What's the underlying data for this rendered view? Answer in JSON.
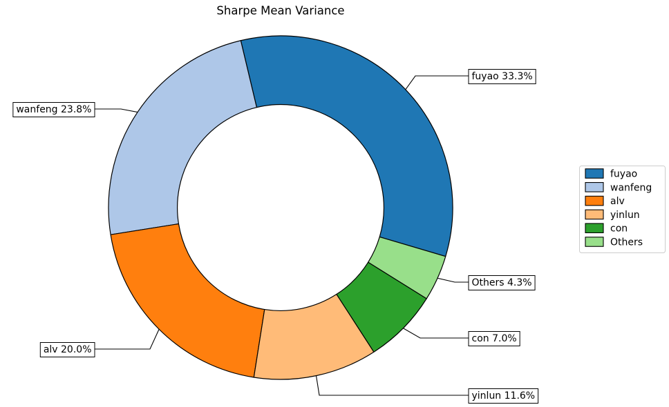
{
  "chart_data": {
    "type": "pie",
    "variant": "donut",
    "title": "Sharpe Mean Variance",
    "categories": [
      "fuyao",
      "wanfeng",
      "alv",
      "yinlun",
      "con",
      "Others"
    ],
    "values_percent": [
      33.3,
      23.8,
      20.0,
      11.6,
      7.0,
      4.3
    ],
    "slice_labels": [
      "fuyao 33.3%",
      "wanfeng 23.8%",
      "alv 20.0%",
      "yinlun 11.6%",
      "con 7.0%",
      "Others 4.3%"
    ],
    "colors": [
      "#1f77b4",
      "#aec7e8",
      "#ff7f0e",
      "#ffbb78",
      "#2ca02c",
      "#98df8a"
    ],
    "start_angle_deg": -16.5,
    "direction": "counterclockwise",
    "donut_hole_ratio": 0.6,
    "edge_color": "#000000",
    "leader_line_color": "#000000",
    "label_box_fill": "#ffffff",
    "label_box_edge": "#000000",
    "background": "#ffffff",
    "legend": {
      "position": "center right",
      "entries": [
        "fuyao",
        "wanfeng",
        "alv",
        "yinlun",
        "con",
        "Others"
      ],
      "border_color": "#cccccc",
      "fill": "#ffffff"
    }
  }
}
